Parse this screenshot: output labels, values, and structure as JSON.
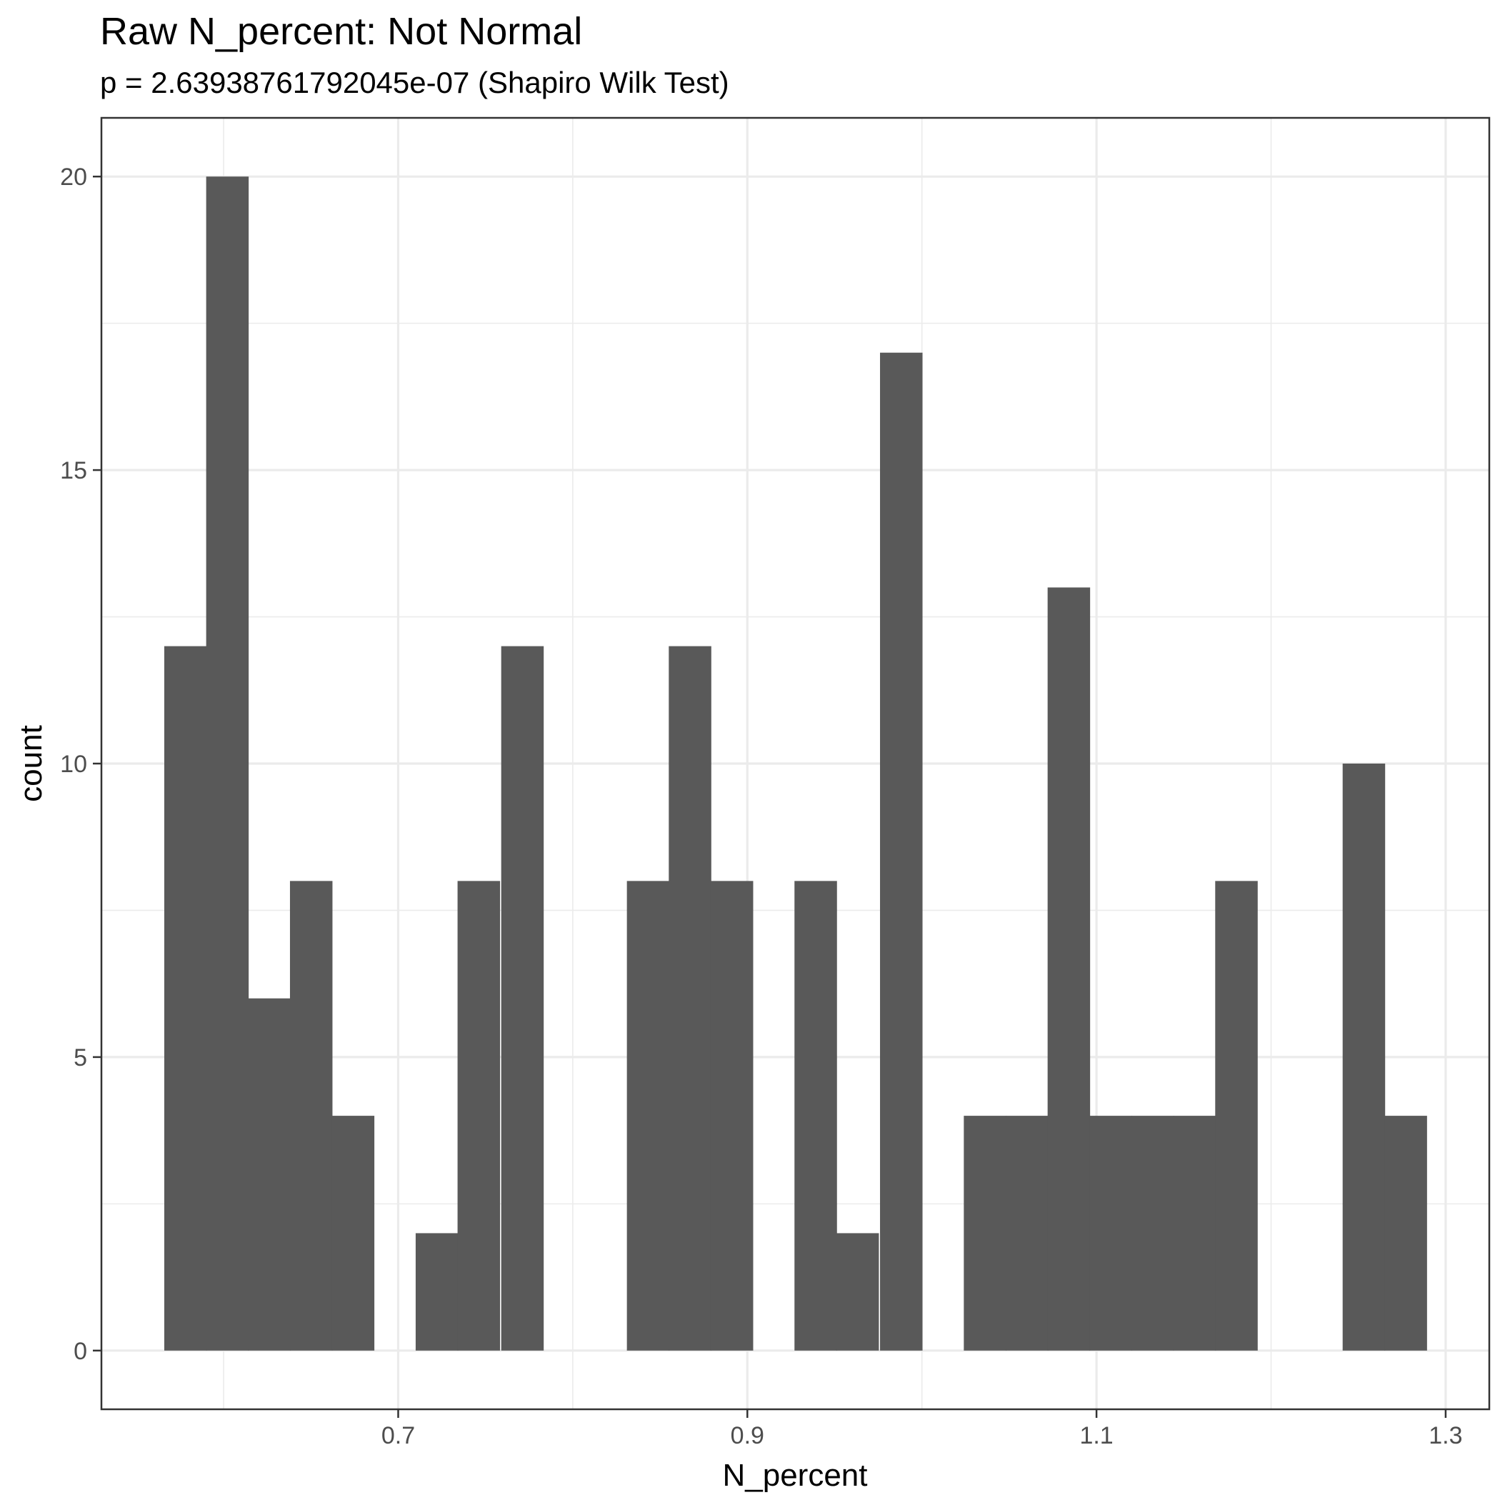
{
  "chart_data": {
    "type": "bar",
    "title": "Raw N_percent: Not Normal",
    "subtitle": "p = 2.63938761792045e-07 (Shapiro Wilk Test)",
    "xlabel": "N_percent",
    "ylabel": "count",
    "xlim": [
      0.53,
      1.325
    ],
    "ylim": [
      -1,
      21
    ],
    "x_ticks": [
      0.7,
      0.9,
      1.1,
      1.3
    ],
    "x_tick_labels": [
      "0.7",
      "0.9",
      "1.1",
      "1.3"
    ],
    "y_ticks": [
      0,
      5,
      10,
      15,
      20
    ],
    "y_tick_labels": [
      "0",
      "5",
      "10",
      "15",
      "20"
    ],
    "x_minor": [
      0.6,
      0.8,
      1.0,
      1.2
    ],
    "y_minor": [
      2.5,
      7.5,
      12.5,
      17.5
    ],
    "grid": true,
    "bin_width": 0.0241,
    "bins": [
      {
        "x0": 0.566,
        "count": 12
      },
      {
        "x0": 0.59,
        "count": 20
      },
      {
        "x0": 0.614,
        "count": 6
      },
      {
        "x0": 0.638,
        "count": 8
      },
      {
        "x0": 0.662,
        "count": 4
      },
      {
        "x0": 0.686,
        "count": 0
      },
      {
        "x0": 0.71,
        "count": 2
      },
      {
        "x0": 0.734,
        "count": 8
      },
      {
        "x0": 0.759,
        "count": 12
      },
      {
        "x0": 0.783,
        "count": 0
      },
      {
        "x0": 0.807,
        "count": 0
      },
      {
        "x0": 0.831,
        "count": 8
      },
      {
        "x0": 0.855,
        "count": 12
      },
      {
        "x0": 0.879,
        "count": 8
      },
      {
        "x0": 0.903,
        "count": 0
      },
      {
        "x0": 0.927,
        "count": 8
      },
      {
        "x0": 0.951,
        "count": 2
      },
      {
        "x0": 0.976,
        "count": 17
      },
      {
        "x0": 1.0,
        "count": 0
      },
      {
        "x0": 1.024,
        "count": 4
      },
      {
        "x0": 1.048,
        "count": 4
      },
      {
        "x0": 1.072,
        "count": 13
      },
      {
        "x0": 1.096,
        "count": 4
      },
      {
        "x0": 1.12,
        "count": 4
      },
      {
        "x0": 1.144,
        "count": 4
      },
      {
        "x0": 1.168,
        "count": 8
      },
      {
        "x0": 1.193,
        "count": 0
      },
      {
        "x0": 1.217,
        "count": 0
      },
      {
        "x0": 1.241,
        "count": 10
      },
      {
        "x0": 1.265,
        "count": 4
      }
    ]
  }
}
